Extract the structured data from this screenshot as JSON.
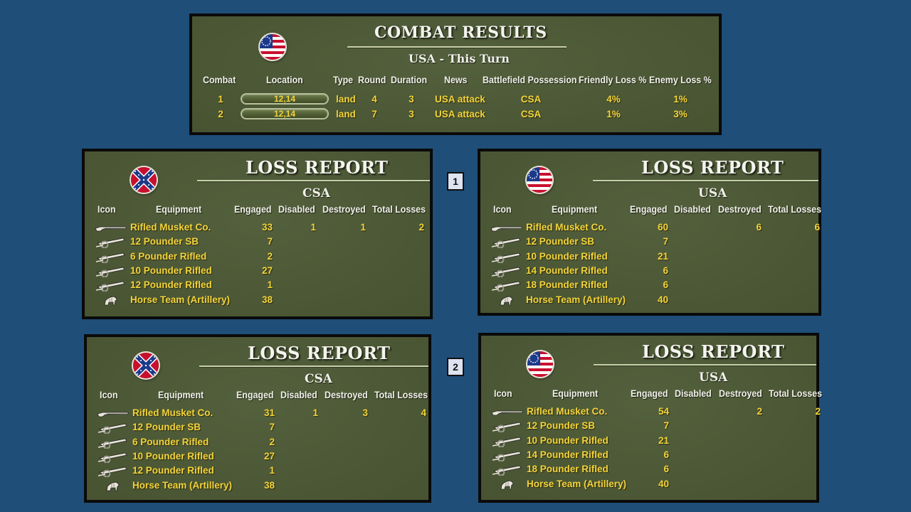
{
  "combat_results": {
    "title": "COMBAT RESULTS",
    "subtitle": "USA - This Turn",
    "flag": "usa-flag",
    "headers": [
      "Combat",
      "Location",
      "Type",
      "Round",
      "Duration",
      "News",
      "Battlefield Possession",
      "Friendly Loss %",
      "Enemy Loss %"
    ],
    "rows": [
      {
        "combat": "1",
        "location": "12,14",
        "type": "land",
        "round": "4",
        "duration": "3",
        "news": "USA attack",
        "possession": "CSA",
        "friendly_loss": "4%",
        "enemy_loss": "1%"
      },
      {
        "combat": "2",
        "location": "12,14",
        "type": "land",
        "round": "7",
        "duration": "3",
        "news": "USA attack",
        "possession": "CSA",
        "friendly_loss": "1%",
        "enemy_loss": "3%"
      }
    ]
  },
  "markers": [
    "1",
    "2"
  ],
  "loss_headers": [
    "Icon",
    "Equipment",
    "Engaged",
    "Disabled",
    "Destroyed",
    "Total Losses"
  ],
  "reports": [
    {
      "title": "LOSS REPORT",
      "side": "CSA",
      "flag": "csa-flag",
      "rows": [
        {
          "icon": "musket-icon",
          "equipment": "Rifled Musket Co.",
          "engaged": "33",
          "disabled": "1",
          "destroyed": "1",
          "total": "2"
        },
        {
          "icon": "cannon-icon",
          "equipment": "12 Pounder SB",
          "engaged": "7",
          "disabled": "",
          "destroyed": "",
          "total": ""
        },
        {
          "icon": "cannon-icon",
          "equipment": "6 Pounder Rifled",
          "engaged": "2",
          "disabled": "",
          "destroyed": "",
          "total": ""
        },
        {
          "icon": "cannon-icon",
          "equipment": "10 Pounder Rifled",
          "engaged": "27",
          "disabled": "",
          "destroyed": "",
          "total": ""
        },
        {
          "icon": "cannon-icon",
          "equipment": "12 Pounder Rifled",
          "engaged": "1",
          "disabled": "",
          "destroyed": "",
          "total": ""
        },
        {
          "icon": "horse-icon",
          "equipment": "Horse Team (Artillery)",
          "engaged": "38",
          "disabled": "",
          "destroyed": "",
          "total": ""
        }
      ]
    },
    {
      "title": "LOSS REPORT",
      "side": "USA",
      "flag": "usa-flag",
      "rows": [
        {
          "icon": "musket-icon",
          "equipment": "Rifled Musket Co.",
          "engaged": "60",
          "disabled": "",
          "destroyed": "6",
          "total": "6"
        },
        {
          "icon": "cannon-icon",
          "equipment": "12 Pounder SB",
          "engaged": "7",
          "disabled": "",
          "destroyed": "",
          "total": ""
        },
        {
          "icon": "cannon-icon",
          "equipment": "10 Pounder Rifled",
          "engaged": "21",
          "disabled": "",
          "destroyed": "",
          "total": ""
        },
        {
          "icon": "cannon-icon",
          "equipment": "14 Pounder Rifled",
          "engaged": "6",
          "disabled": "",
          "destroyed": "",
          "total": ""
        },
        {
          "icon": "cannon-icon",
          "equipment": "18 Pounder Rifled",
          "engaged": "6",
          "disabled": "",
          "destroyed": "",
          "total": ""
        },
        {
          "icon": "horse-icon",
          "equipment": "Horse Team (Artillery)",
          "engaged": "40",
          "disabled": "",
          "destroyed": "",
          "total": ""
        }
      ]
    },
    {
      "title": "LOSS REPORT",
      "side": "CSA",
      "flag": "csa-flag",
      "rows": [
        {
          "icon": "musket-icon",
          "equipment": "Rifled Musket Co.",
          "engaged": "31",
          "disabled": "1",
          "destroyed": "3",
          "total": "4"
        },
        {
          "icon": "cannon-icon",
          "equipment": "12 Pounder SB",
          "engaged": "7",
          "disabled": "",
          "destroyed": "",
          "total": ""
        },
        {
          "icon": "cannon-icon",
          "equipment": "6 Pounder Rifled",
          "engaged": "2",
          "disabled": "",
          "destroyed": "",
          "total": ""
        },
        {
          "icon": "cannon-icon",
          "equipment": "10 Pounder Rifled",
          "engaged": "27",
          "disabled": "",
          "destroyed": "",
          "total": ""
        },
        {
          "icon": "cannon-icon",
          "equipment": "12 Pounder Rifled",
          "engaged": "1",
          "disabled": "",
          "destroyed": "",
          "total": ""
        },
        {
          "icon": "horse-icon",
          "equipment": "Horse Team (Artillery)",
          "engaged": "38",
          "disabled": "",
          "destroyed": "",
          "total": ""
        }
      ]
    },
    {
      "title": "LOSS REPORT",
      "side": "USA",
      "flag": "usa-flag",
      "rows": [
        {
          "icon": "musket-icon",
          "equipment": "Rifled Musket Co.",
          "engaged": "54",
          "disabled": "",
          "destroyed": "2",
          "total": "2"
        },
        {
          "icon": "cannon-icon",
          "equipment": "12 Pounder SB",
          "engaged": "7",
          "disabled": "",
          "destroyed": "",
          "total": ""
        },
        {
          "icon": "cannon-icon",
          "equipment": "10 Pounder Rifled",
          "engaged": "21",
          "disabled": "",
          "destroyed": "",
          "total": ""
        },
        {
          "icon": "cannon-icon",
          "equipment": "14 Pounder Rifled",
          "engaged": "6",
          "disabled": "",
          "destroyed": "",
          "total": ""
        },
        {
          "icon": "cannon-icon",
          "equipment": "18 Pounder Rifled",
          "engaged": "6",
          "disabled": "",
          "destroyed": "",
          "total": ""
        },
        {
          "icon": "horse-icon",
          "equipment": "Horse Team (Artillery)",
          "engaged": "40",
          "disabled": "",
          "destroyed": "",
          "total": ""
        }
      ]
    }
  ]
}
